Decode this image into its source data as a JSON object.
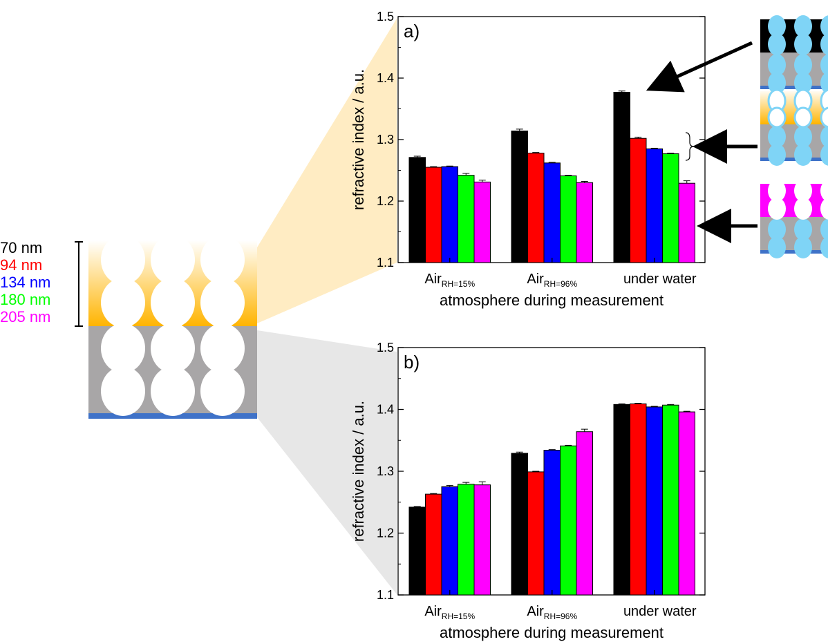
{
  "legend": {
    "items": [
      {
        "label": "70 nm",
        "color": "#000000"
      },
      {
        "label": "94 nm",
        "color": "#ff0000"
      },
      {
        "label": "134 nm",
        "color": "#0000ff"
      },
      {
        "label": "180 nm",
        "color": "#00ff00"
      },
      {
        "label": "205 nm",
        "color": "#ff00ff"
      }
    ]
  },
  "colors": {
    "top_layer": "#ffb400",
    "bottom_layer": "#a8a6a7",
    "substrate": "#3f72c8",
    "water": "#7fd4f6"
  },
  "chart_data": [
    {
      "type": "bar",
      "panel_label": "a)",
      "ylabel": "refractive index / a.u.",
      "xlabel": "atmosphere during measurement",
      "categories": [
        {
          "main": "Air",
          "sub": "RH=15%"
        },
        {
          "main": "Air",
          "sub": "RH=96%"
        },
        {
          "main": "under water",
          "sub": ""
        }
      ],
      "ylim": [
        1.1,
        1.5
      ],
      "yticks": [
        "1.1",
        "1.2",
        "1.3",
        "1.4",
        "1.5"
      ],
      "series": [
        {
          "name": "70 nm",
          "color": "#000000",
          "values": [
            1.271,
            1.314,
            1.377
          ],
          "errors": [
            0.002,
            0.003,
            0.002
          ]
        },
        {
          "name": "94 nm",
          "color": "#ff0000",
          "values": [
            1.255,
            1.278,
            1.302
          ],
          "errors": [
            0.001,
            0.001,
            0.002
          ]
        },
        {
          "name": "134 nm",
          "color": "#0000ff",
          "values": [
            1.256,
            1.262,
            1.285
          ],
          "errors": [
            0.001,
            0.001,
            0.001
          ]
        },
        {
          "name": "180 nm",
          "color": "#00ff00",
          "values": [
            1.242,
            1.241,
            1.277
          ],
          "errors": [
            0.003,
            0.001,
            0.001
          ]
        },
        {
          "name": "205 nm",
          "color": "#ff00ff",
          "values": [
            1.231,
            1.23,
            1.229
          ],
          "errors": [
            0.003,
            0.002,
            0.004
          ]
        }
      ]
    },
    {
      "type": "bar",
      "panel_label": "b)",
      "ylabel": "refractive index / a.u.",
      "xlabel": "atmosphere during measurement",
      "categories": [
        {
          "main": "Air",
          "sub": "RH=15%"
        },
        {
          "main": "Air",
          "sub": "RH=96%"
        },
        {
          "main": "under water",
          "sub": ""
        }
      ],
      "ylim": [
        1.1,
        1.5
      ],
      "yticks": [
        "1.1",
        "1.2",
        "1.3",
        "1.4",
        "1.5"
      ],
      "series": [
        {
          "name": "70 nm",
          "color": "#000000",
          "values": [
            1.242,
            1.329,
            1.408
          ],
          "errors": [
            0.001,
            0.002,
            0.001
          ]
        },
        {
          "name": "94 nm",
          "color": "#ff0000",
          "values": [
            1.263,
            1.299,
            1.409
          ],
          "errors": [
            0.001,
            0.001,
            0.001
          ]
        },
        {
          "name": "134 nm",
          "color": "#0000ff",
          "values": [
            1.275,
            1.334,
            1.404
          ],
          "errors": [
            0.002,
            0.001,
            0.001
          ]
        },
        {
          "name": "180 nm",
          "color": "#00ff00",
          "values": [
            1.279,
            1.341,
            1.407
          ],
          "errors": [
            0.003,
            0.001,
            0.001
          ]
        },
        {
          "name": "205 nm",
          "color": "#ff00ff",
          "values": [
            1.278,
            1.364,
            1.396
          ],
          "errors": [
            0.005,
            0.004,
            0.001
          ]
        }
      ]
    }
  ]
}
